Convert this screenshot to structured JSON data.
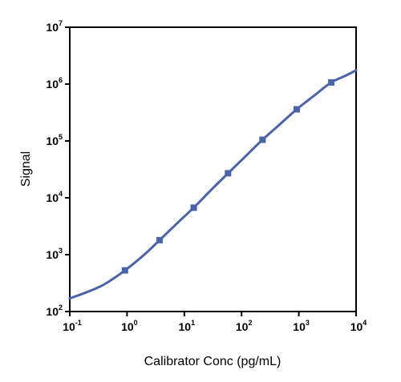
{
  "chart_data": {
    "type": "scatter",
    "xlabel": "Calibrator Conc (pg/mL)",
    "ylabel": "Signal",
    "x_scale": "log",
    "y_scale": "log",
    "xlim": [
      0.1,
      10000
    ],
    "ylim": [
      100,
      10000000
    ],
    "x_ticks": [
      {
        "base": "10",
        "exp": "-1",
        "value": 0.1
      },
      {
        "base": "10",
        "exp": "0",
        "value": 1
      },
      {
        "base": "10",
        "exp": "1",
        "value": 10
      },
      {
        "base": "10",
        "exp": "2",
        "value": 100
      },
      {
        "base": "10",
        "exp": "3",
        "value": 1000
      },
      {
        "base": "10",
        "exp": "4",
        "value": 10000
      }
    ],
    "y_ticks": [
      {
        "base": "10",
        "exp": "2",
        "value": 100
      },
      {
        "base": "10",
        "exp": "3",
        "value": 1000
      },
      {
        "base": "10",
        "exp": "4",
        "value": 10000
      },
      {
        "base": "10",
        "exp": "5",
        "value": 100000
      },
      {
        "base": "10",
        "exp": "6",
        "value": 1000000
      },
      {
        "base": "10",
        "exp": "7",
        "value": 10000000
      }
    ],
    "grid": false,
    "legend": "none",
    "colors": {
      "series": "#4a63ad",
      "axis": "#000000"
    },
    "points": [
      {
        "x": 0.92,
        "y": 530
      },
      {
        "x": 3.7,
        "y": 1800
      },
      {
        "x": 14.6,
        "y": 6700
      },
      {
        "x": 58,
        "y": 27000
      },
      {
        "x": 232,
        "y": 105000
      },
      {
        "x": 920,
        "y": 360000
      },
      {
        "x": 3690,
        "y": 1070000
      }
    ],
    "fit_curve": [
      {
        "x": 0.1,
        "y": 170
      },
      {
        "x": 0.2,
        "y": 220
      },
      {
        "x": 0.4,
        "y": 300
      },
      {
        "x": 0.92,
        "y": 530
      },
      {
        "x": 2.0,
        "y": 1000
      },
      {
        "x": 3.7,
        "y": 1800
      },
      {
        "x": 8,
        "y": 3800
      },
      {
        "x": 14.6,
        "y": 6700
      },
      {
        "x": 30,
        "y": 14000
      },
      {
        "x": 58,
        "y": 27000
      },
      {
        "x": 120,
        "y": 55000
      },
      {
        "x": 232,
        "y": 105000
      },
      {
        "x": 450,
        "y": 190000
      },
      {
        "x": 920,
        "y": 360000
      },
      {
        "x": 1900,
        "y": 640000
      },
      {
        "x": 3690,
        "y": 1070000
      },
      {
        "x": 6500,
        "y": 1400000
      },
      {
        "x": 10000,
        "y": 1750000
      }
    ]
  }
}
